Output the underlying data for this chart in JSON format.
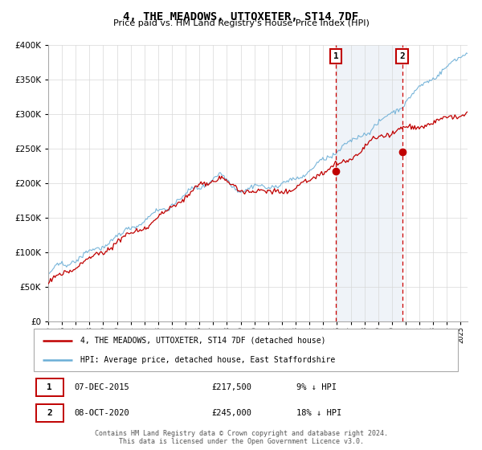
{
  "title": "4, THE MEADOWS, UTTOXETER, ST14 7DF",
  "subtitle": "Price paid vs. HM Land Registry's House Price Index (HPI)",
  "ylim": [
    0,
    400000
  ],
  "xlim_start": 1995.0,
  "xlim_end": 2025.5,
  "hpi_color": "#6baed6",
  "price_color": "#c00000",
  "marker1_date": 2015.92,
  "marker2_date": 2020.75,
  "marker1_price": 217500,
  "marker2_price": 245000,
  "legend_line1": "4, THE MEADOWS, UTTOXETER, ST14 7DF (detached house)",
  "legend_line2": "HPI: Average price, detached house, East Staffordshire",
  "footer": "Contains HM Land Registry data © Crown copyright and database right 2024.\nThis data is licensed under the Open Government Licence v3.0.",
  "table_row1": [
    "1",
    "07-DEC-2015",
    "£217,500",
    "9% ↓ HPI"
  ],
  "table_row2": [
    "2",
    "08-OCT-2020",
    "£245,000",
    "18% ↓ HPI"
  ],
  "grid_color": "#d8d8d8",
  "shade_color": "#dce6f1",
  "shade_alpha": 0.45
}
